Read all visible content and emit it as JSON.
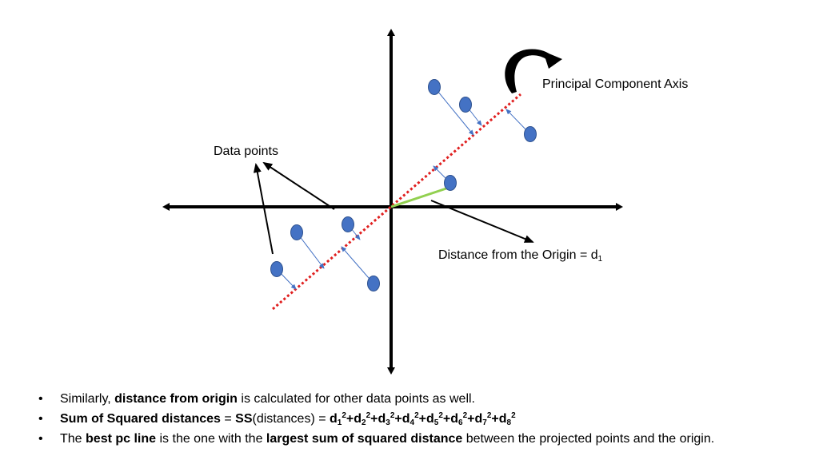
{
  "labels": {
    "pc_axis": "Principal Component Axis",
    "data_points": "Data points",
    "distance_origin": "Distance from the Origin = d",
    "distance_origin_sub": "1"
  },
  "bullets": [
    {
      "a": "Similarly, ",
      "b": "distance from origin",
      "c": " is calculated for other data points as well."
    },
    {
      "a": "Sum of Squared distances",
      "b": " = ",
      "c": "SS",
      "d": "(distances) = ",
      "terms": [
        {
          "pre": "d",
          "sub": "1",
          "sup": "2"
        },
        {
          "pre": "+d",
          "sub": "2",
          "sup": "2"
        },
        {
          "pre": "+d",
          "sub": "3",
          "sup": "2"
        },
        {
          "pre": "+d",
          "sub": "4",
          "sup": "2"
        },
        {
          "pre": "+d",
          "sub": "5",
          "sup": "2"
        },
        {
          "pre": "+d",
          "sub": "6",
          "sup": "2"
        },
        {
          "pre": "+d",
          "sub": "7",
          "sup": "2"
        },
        {
          "pre": "+d",
          "sub": "8",
          "sup": "2"
        }
      ]
    },
    {
      "a": "The ",
      "b": "best pc line",
      "c": " is the one with the ",
      "d": "largest sum of squared distance",
      "e": " between the projected points and the origin."
    }
  ],
  "colors": {
    "point": "#4472c4",
    "point_stroke": "#2f528f",
    "pc_line": "#e02020",
    "distance_line": "#92d050",
    "projection": "#4472c4",
    "axis": "#000000"
  },
  "icons": {
    "rotation": "curved-rotation-arrow-icon"
  }
}
